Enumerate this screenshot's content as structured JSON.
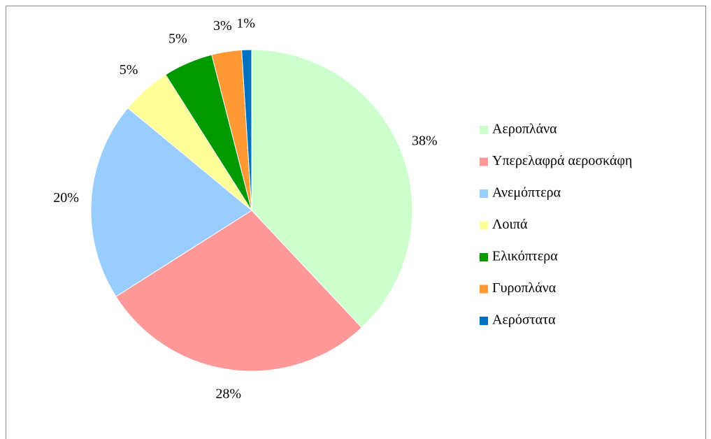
{
  "chart_data": {
    "type": "pie",
    "categories": [
      "Αεροπλάνα",
      "Υπερελαφρά αεροσκάφη",
      "Ανεμόπτερα",
      "Λοιπά",
      "Ελικόπτερα",
      "Γυροπλάνα",
      "Αερόστατα"
    ],
    "values": [
      38,
      28,
      20,
      5,
      5,
      3,
      1
    ],
    "value_labels": [
      "38%",
      "28%",
      "20%",
      "5%",
      "5%",
      "3%",
      "1%"
    ],
    "colors": [
      "#ccffcc",
      "#ff9999",
      "#99ccff",
      "#ffff99",
      "#009900",
      "#ff9933",
      "#0070c0"
    ],
    "legend": "right"
  }
}
